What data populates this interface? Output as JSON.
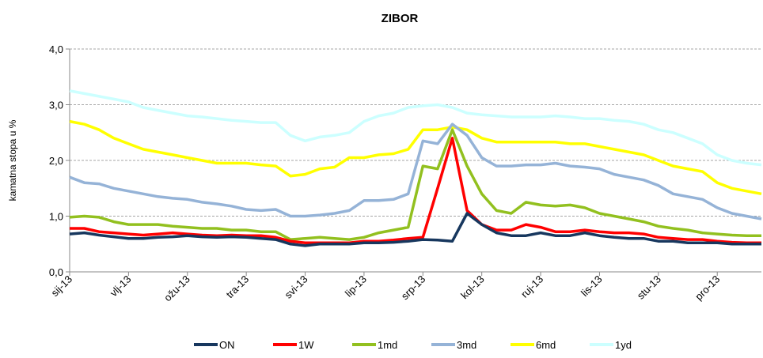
{
  "chart_data": {
    "type": "line",
    "title": "ZIBOR",
    "y_label": "kamatna stopa u %",
    "categories": [
      "sij-13",
      null,
      null,
      null,
      "vlj-13",
      null,
      null,
      null,
      "ožu-13",
      null,
      null,
      null,
      "tra-13",
      null,
      null,
      null,
      "svi-13",
      null,
      null,
      null,
      "lip-13",
      null,
      null,
      null,
      "srp-13",
      null,
      null,
      null,
      "kol-13",
      null,
      null,
      null,
      "ruj-13",
      null,
      null,
      null,
      "lis-13",
      null,
      null,
      null,
      "stu-13",
      null,
      null,
      null,
      "pro-13",
      null,
      null,
      null
    ],
    "ylim": [
      0,
      4
    ],
    "yticks": [
      {
        "value": 0,
        "label": "0,0"
      },
      {
        "value": 1,
        "label": "1,0"
      },
      {
        "value": 2,
        "label": "2,0"
      },
      {
        "value": 3,
        "label": "3,0"
      },
      {
        "value": 4,
        "label": "4,0"
      }
    ],
    "grid": true,
    "legend": "bottom",
    "series": [
      {
        "name": "ON",
        "color": "#17375e",
        "values": [
          0.68,
          0.7,
          0.66,
          0.63,
          0.6,
          0.6,
          0.62,
          0.63,
          0.65,
          0.63,
          0.62,
          0.63,
          0.62,
          0.6,
          0.58,
          0.5,
          0.47,
          0.5,
          0.5,
          0.5,
          0.52,
          0.52,
          0.53,
          0.55,
          0.58,
          0.57,
          0.55,
          1.05,
          0.85,
          0.7,
          0.65,
          0.65,
          0.7,
          0.65,
          0.65,
          0.7,
          0.65,
          0.62,
          0.6,
          0.6,
          0.55,
          0.55,
          0.52,
          0.52,
          0.52,
          0.5,
          0.5,
          0.5
        ]
      },
      {
        "name": "1W",
        "color": "#ff0000",
        "values": [
          0.78,
          0.78,
          0.72,
          0.7,
          0.68,
          0.66,
          0.68,
          0.7,
          0.68,
          0.66,
          0.65,
          0.66,
          0.65,
          0.65,
          0.62,
          0.55,
          0.52,
          0.52,
          0.52,
          0.52,
          0.55,
          0.55,
          0.57,
          0.6,
          0.62,
          1.5,
          2.4,
          1.1,
          0.85,
          0.75,
          0.75,
          0.85,
          0.8,
          0.72,
          0.72,
          0.75,
          0.72,
          0.7,
          0.7,
          0.68,
          0.62,
          0.6,
          0.58,
          0.58,
          0.55,
          0.53,
          0.52,
          0.52
        ]
      },
      {
        "name": "1md",
        "color": "#92c01f",
        "values": [
          0.98,
          1.0,
          0.98,
          0.9,
          0.85,
          0.85,
          0.85,
          0.82,
          0.8,
          0.78,
          0.78,
          0.75,
          0.75,
          0.72,
          0.72,
          0.58,
          0.6,
          0.62,
          0.6,
          0.58,
          0.62,
          0.7,
          0.75,
          0.8,
          1.9,
          1.85,
          2.55,
          1.9,
          1.4,
          1.1,
          1.05,
          1.25,
          1.2,
          1.18,
          1.2,
          1.15,
          1.05,
          1.0,
          0.95,
          0.9,
          0.82,
          0.78,
          0.75,
          0.7,
          0.68,
          0.66,
          0.65,
          0.65
        ]
      },
      {
        "name": "3md",
        "color": "#95b3d7",
        "values": [
          1.7,
          1.6,
          1.58,
          1.5,
          1.45,
          1.4,
          1.35,
          1.32,
          1.3,
          1.25,
          1.22,
          1.18,
          1.12,
          1.1,
          1.12,
          1.0,
          1.0,
          1.02,
          1.05,
          1.1,
          1.28,
          1.28,
          1.3,
          1.4,
          2.35,
          2.3,
          2.65,
          2.45,
          2.05,
          1.9,
          1.9,
          1.92,
          1.92,
          1.95,
          1.9,
          1.88,
          1.85,
          1.75,
          1.7,
          1.65,
          1.55,
          1.4,
          1.35,
          1.3,
          1.15,
          1.05,
          1.0,
          0.95
        ]
      },
      {
        "name": "6md",
        "color": "#ffff00",
        "values": [
          2.7,
          2.65,
          2.55,
          2.4,
          2.3,
          2.2,
          2.15,
          2.1,
          2.05,
          2.0,
          1.95,
          1.95,
          1.95,
          1.92,
          1.9,
          1.72,
          1.75,
          1.85,
          1.88,
          2.05,
          2.05,
          2.1,
          2.12,
          2.2,
          2.55,
          2.55,
          2.6,
          2.55,
          2.4,
          2.33,
          2.33,
          2.33,
          2.33,
          2.33,
          2.3,
          2.3,
          2.25,
          2.2,
          2.15,
          2.1,
          2.0,
          1.9,
          1.85,
          1.8,
          1.6,
          1.5,
          1.45,
          1.4
        ]
      },
      {
        "name": "1yd",
        "color": "#ccffff",
        "values": [
          3.25,
          3.2,
          3.15,
          3.1,
          3.05,
          2.95,
          2.9,
          2.85,
          2.8,
          2.78,
          2.75,
          2.72,
          2.7,
          2.68,
          2.68,
          2.45,
          2.35,
          2.42,
          2.45,
          2.5,
          2.7,
          2.8,
          2.85,
          2.95,
          2.98,
          3.0,
          2.95,
          2.85,
          2.82,
          2.8,
          2.78,
          2.78,
          2.78,
          2.8,
          2.78,
          2.75,
          2.75,
          2.72,
          2.7,
          2.65,
          2.55,
          2.5,
          2.4,
          2.3,
          2.1,
          2.0,
          1.95,
          1.92
        ]
      }
    ]
  }
}
